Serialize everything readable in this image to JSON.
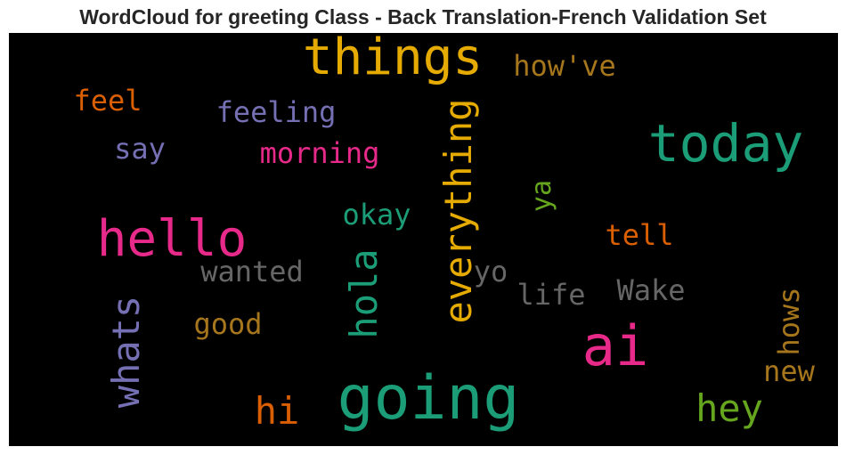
{
  "chart_data": {
    "type": "wordcloud",
    "title": "WordCloud for greeting Class - Back Translation-French Validation Set",
    "background": "#000000",
    "words": [
      {
        "text": "things",
        "color": "#e6ab02",
        "orientation": "horizontal"
      },
      {
        "text": "how've",
        "color": "#a6761d",
        "orientation": "horizontal"
      },
      {
        "text": "feel",
        "color": "#d95f02",
        "orientation": "horizontal"
      },
      {
        "text": "feeling",
        "color": "#7570b3",
        "orientation": "horizontal"
      },
      {
        "text": "today",
        "color": "#1b9e77",
        "orientation": "horizontal"
      },
      {
        "text": "say",
        "color": "#7570b3",
        "orientation": "horizontal"
      },
      {
        "text": "morning",
        "color": "#e7298a",
        "orientation": "horizontal"
      },
      {
        "text": "everything",
        "color": "#e6ab02",
        "orientation": "vertical"
      },
      {
        "text": "ya",
        "color": "#66a61e",
        "orientation": "vertical"
      },
      {
        "text": "okay",
        "color": "#1b9e77",
        "orientation": "horizontal"
      },
      {
        "text": "hello",
        "color": "#e7298a",
        "orientation": "horizontal"
      },
      {
        "text": "tell",
        "color": "#d95f02",
        "orientation": "horizontal"
      },
      {
        "text": "wanted",
        "color": "#666666",
        "orientation": "horizontal"
      },
      {
        "text": "hola",
        "color": "#1b9e77",
        "orientation": "vertical"
      },
      {
        "text": "yo",
        "color": "#666666",
        "orientation": "horizontal"
      },
      {
        "text": "life",
        "color": "#666666",
        "orientation": "horizontal"
      },
      {
        "text": "Wake",
        "color": "#666666",
        "orientation": "horizontal"
      },
      {
        "text": "whats",
        "color": "#7570b3",
        "orientation": "vertical"
      },
      {
        "text": "good",
        "color": "#a6761d",
        "orientation": "horizontal"
      },
      {
        "text": "hows",
        "color": "#a6761d",
        "orientation": "vertical"
      },
      {
        "text": "ai",
        "color": "#e7298a",
        "orientation": "horizontal"
      },
      {
        "text": "new",
        "color": "#a6761d",
        "orientation": "horizontal"
      },
      {
        "text": "going",
        "color": "#1b9e77",
        "orientation": "horizontal"
      },
      {
        "text": "hi",
        "color": "#d95f02",
        "orientation": "horizontal"
      },
      {
        "text": "hey",
        "color": "#66a61e",
        "orientation": "horizontal"
      }
    ]
  }
}
